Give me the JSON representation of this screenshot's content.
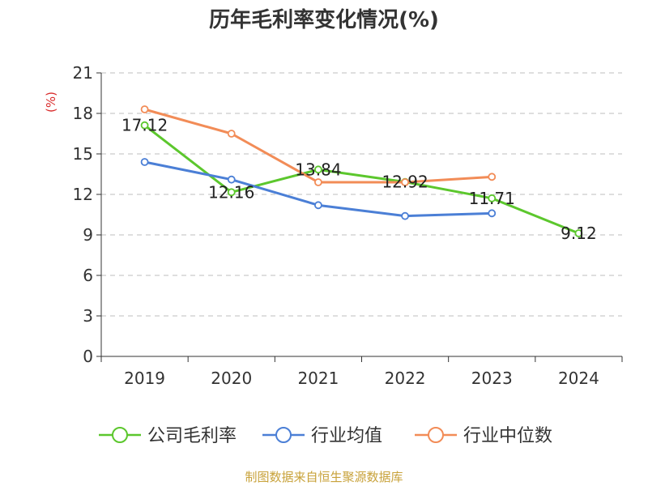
{
  "chart_data": {
    "type": "line",
    "title": "历年毛利率变化情况(%)",
    "ylabel": "(%)",
    "xlabel": "",
    "categories": [
      "2019",
      "2020",
      "2021",
      "2022",
      "2023",
      "2024"
    ],
    "yticks": [
      "0",
      "3",
      "6",
      "9",
      "12",
      "15",
      "18",
      "21"
    ],
    "ylim": [
      0,
      21
    ],
    "grid": true,
    "legend_position": "bottom",
    "series": [
      {
        "name": "公司毛利率",
        "color": "#5cc72d",
        "values": [
          17.12,
          12.16,
          13.84,
          12.92,
          11.71,
          9.12
        ],
        "labels": [
          "17.12",
          "12.16",
          "13.84",
          "12.92",
          "11.71",
          "9.12"
        ]
      },
      {
        "name": "行业均值",
        "color": "#4b7fd6",
        "values": [
          14.4,
          13.1,
          11.2,
          10.4,
          10.6,
          null
        ]
      },
      {
        "name": "行业中位数",
        "color": "#f28c57",
        "values": [
          18.3,
          16.5,
          12.9,
          12.9,
          13.3,
          null
        ]
      }
    ]
  },
  "footer": {
    "source": "制图数据来自恒生聚源数据库"
  }
}
